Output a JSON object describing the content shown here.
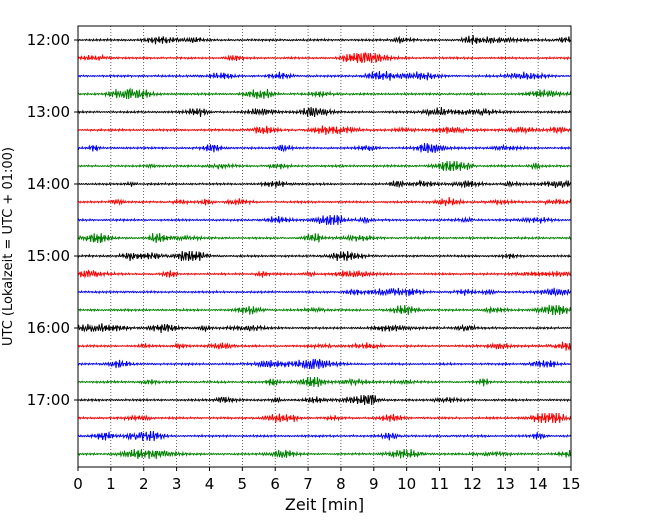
{
  "chart_data": {
    "type": "line",
    "title": "",
    "xlabel": "Zeit  [min]",
    "ylabel": "UTC (Lokalzeit = UTC + 01:00)",
    "xlim": [
      0,
      15
    ],
    "x_ticks": [
      "0",
      "1",
      "2",
      "3",
      "4",
      "5",
      "6",
      "7",
      "8",
      "9",
      "10",
      "11",
      "12",
      "13",
      "14",
      "15"
    ],
    "y_ticks": [
      "12:00",
      "13:00",
      "14:00",
      "15:00",
      "16:00",
      "17:00"
    ],
    "trace_interval_minutes": 15,
    "first_trace_start": "12:00",
    "trace_count": 24,
    "trace_colors": [
      "#000000",
      "#ff0000",
      "#0000ff",
      "#008000"
    ],
    "vertical_grid": "dotted, every 1 min",
    "series": [
      {
        "start": "12:00",
        "color": "#000000"
      },
      {
        "start": "12:15",
        "color": "#ff0000"
      },
      {
        "start": "12:30",
        "color": "#0000ff"
      },
      {
        "start": "12:45",
        "color": "#008000"
      },
      {
        "start": "13:00",
        "color": "#000000"
      },
      {
        "start": "13:15",
        "color": "#ff0000"
      },
      {
        "start": "13:30",
        "color": "#0000ff"
      },
      {
        "start": "13:45",
        "color": "#008000"
      },
      {
        "start": "14:00",
        "color": "#000000"
      },
      {
        "start": "14:15",
        "color": "#ff0000"
      },
      {
        "start": "14:30",
        "color": "#0000ff"
      },
      {
        "start": "14:45",
        "color": "#008000"
      },
      {
        "start": "15:00",
        "color": "#000000"
      },
      {
        "start": "15:15",
        "color": "#ff0000"
      },
      {
        "start": "15:30",
        "color": "#0000ff"
      },
      {
        "start": "15:45",
        "color": "#008000"
      },
      {
        "start": "16:00",
        "color": "#000000"
      },
      {
        "start": "16:15",
        "color": "#ff0000"
      },
      {
        "start": "16:30",
        "color": "#0000ff"
      },
      {
        "start": "16:45",
        "color": "#008000"
      },
      {
        "start": "17:00",
        "color": "#000000"
      },
      {
        "start": "17:15",
        "color": "#ff0000"
      },
      {
        "start": "17:30",
        "color": "#0000ff"
      },
      {
        "start": "17:45",
        "color": "#008000"
      }
    ]
  }
}
